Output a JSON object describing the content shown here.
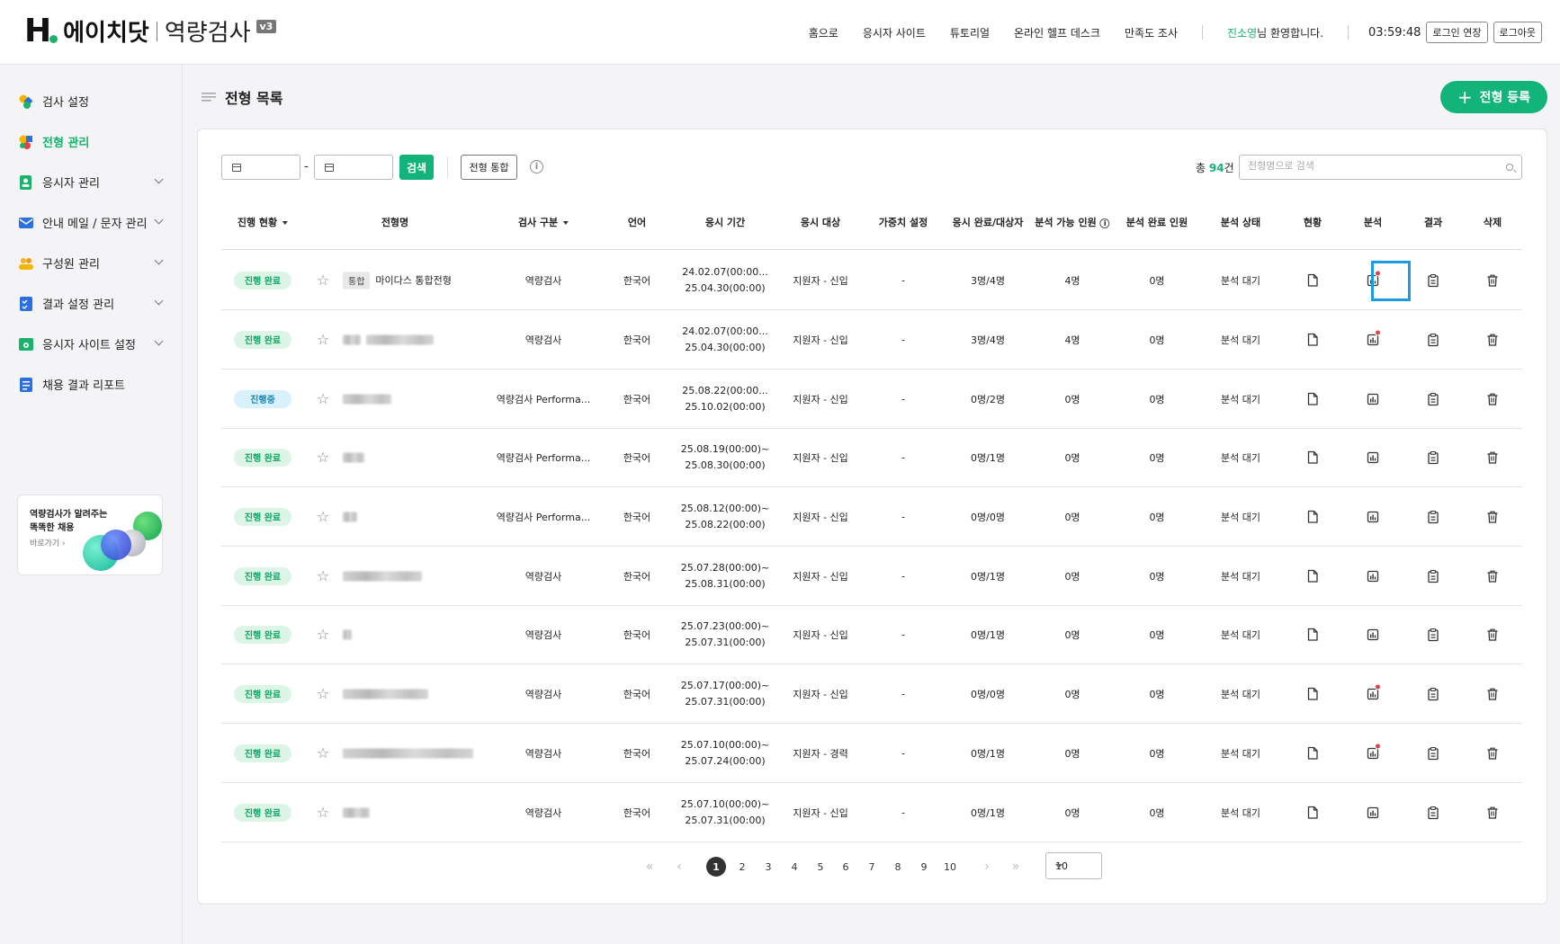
{
  "header": {
    "logo_mark": "H",
    "logo_name": "에이치닷",
    "logo_sub": "역량검사",
    "logo_version": "v3",
    "nav": [
      "홈으로",
      "응시자 사이트",
      "튜토리얼",
      "온라인 헬프 데스크",
      "만족도 조사"
    ],
    "user_name": "진소영",
    "welcome_suffix": "님 환영합니다.",
    "timer": "03:59:48",
    "extend_login": "로그인 연장",
    "logout": "로그아웃"
  },
  "sidebar": {
    "items": [
      {
        "label": "검사 설정",
        "icon": "test-settings-icon",
        "expandable": false,
        "active": false
      },
      {
        "label": "전형 관리",
        "icon": "screening-manage-icon",
        "expandable": false,
        "active": true
      },
      {
        "label": "응시자 관리",
        "icon": "applicant-manage-icon",
        "expandable": true,
        "active": false
      },
      {
        "label": "안내 메일 / 문자 관리",
        "icon": "mail-icon",
        "expandable": true,
        "active": false
      },
      {
        "label": "구성원 관리",
        "icon": "members-icon",
        "expandable": true,
        "active": false
      },
      {
        "label": "결과 설정 관리",
        "icon": "result-settings-icon",
        "expandable": true,
        "active": false
      },
      {
        "label": "응시자 사이트 설정",
        "icon": "site-settings-icon",
        "expandable": true,
        "active": false
      },
      {
        "label": "채용 결과 리포트",
        "icon": "report-icon",
        "expandable": false,
        "active": false
      }
    ],
    "banner": {
      "title": "역량검사가 알려주는 똑똑한 채용",
      "link": "바로가기"
    }
  },
  "page": {
    "title": "전형 목록",
    "register_button": "전형 등록",
    "search_button": "검색",
    "merge_button": "전형 통합",
    "total_prefix": "총 ",
    "total_count": "94",
    "total_suffix": "건",
    "search_placeholder": "전형명으로 검색",
    "date_dash": "-"
  },
  "table": {
    "columns": [
      "진행 현황",
      "전형명",
      "검사 구분",
      "언어",
      "응시 기간",
      "응시 대상",
      "가중치 설정",
      "응시 완료/대상자",
      "분석 가능 인원",
      "분석 완료 인원",
      "분석 상태",
      "현황",
      "분석",
      "결과",
      "삭제"
    ],
    "rows": [
      {
        "status": "진행 완료",
        "in_progress": false,
        "tag": "통합",
        "name": "마이다스 통합전형",
        "blurred": false,
        "type": "역량검사",
        "lang": "한국어",
        "period1": "24.02.07(00:00...",
        "period2": "25.04.30(00:00)",
        "target": "지원자 - 신입",
        "weight": "-",
        "done": "3명/4명",
        "avail": "4명",
        "analyzed": "0명",
        "astate": "분석 대기",
        "alert": true,
        "highlight": true
      },
      {
        "status": "진행 완료",
        "in_progress": false,
        "tag": "",
        "name": "",
        "blurred": true,
        "type": "역량검사",
        "lang": "한국어",
        "period1": "24.02.07(00:00...",
        "period2": "25.04.30(00:00)",
        "target": "지원자 - 신입",
        "weight": "-",
        "done": "3명/4명",
        "avail": "4명",
        "analyzed": "0명",
        "astate": "분석 대기",
        "alert": true,
        "highlight": false
      },
      {
        "status": "진행중",
        "in_progress": true,
        "tag": "",
        "name": "",
        "blurred": true,
        "type": "역량검사 Performa...",
        "lang": "한국어",
        "period1": "25.08.22(00:00...",
        "period2": "25.10.02(00:00)",
        "target": "지원자 - 신입",
        "weight": "-",
        "done": "0명/2명",
        "avail": "0명",
        "analyzed": "0명",
        "astate": "분석 대기",
        "alert": false,
        "highlight": false
      },
      {
        "status": "진행 완료",
        "in_progress": false,
        "tag": "",
        "name": "",
        "blurred": true,
        "type": "역량검사 Performa...",
        "lang": "한국어",
        "period1": "25.08.19(00:00)~",
        "period2": "25.08.30(00:00)",
        "target": "지원자 - 신입",
        "weight": "-",
        "done": "0명/1명",
        "avail": "0명",
        "analyzed": "0명",
        "astate": "분석 대기",
        "alert": false,
        "highlight": false
      },
      {
        "status": "진행 완료",
        "in_progress": false,
        "tag": "",
        "name": "",
        "blurred": true,
        "type": "역량검사 Performa...",
        "lang": "한국어",
        "period1": "25.08.12(00:00)~",
        "period2": "25.08.22(00:00)",
        "target": "지원자 - 신입",
        "weight": "-",
        "done": "0명/0명",
        "avail": "0명",
        "analyzed": "0명",
        "astate": "분석 대기",
        "alert": false,
        "highlight": false
      },
      {
        "status": "진행 완료",
        "in_progress": false,
        "tag": "",
        "name": "",
        "blurred": true,
        "type": "역량검사",
        "lang": "한국어",
        "period1": "25.07.28(00:00)~",
        "period2": "25.08.31(00:00)",
        "target": "지원자 - 신입",
        "weight": "-",
        "done": "0명/1명",
        "avail": "0명",
        "analyzed": "0명",
        "astate": "분석 대기",
        "alert": false,
        "highlight": false
      },
      {
        "status": "진행 완료",
        "in_progress": false,
        "tag": "",
        "name": "",
        "blurred": true,
        "type": "역량검사",
        "lang": "한국어",
        "period1": "25.07.23(00:00)~",
        "period2": "25.07.31(00:00)",
        "target": "지원자 - 신입",
        "weight": "-",
        "done": "0명/1명",
        "avail": "0명",
        "analyzed": "0명",
        "astate": "분석 대기",
        "alert": false,
        "highlight": false
      },
      {
        "status": "진행 완료",
        "in_progress": false,
        "tag": "",
        "name": "",
        "blurred": true,
        "type": "역량검사",
        "lang": "한국어",
        "period1": "25.07.17(00:00)~",
        "period2": "25.07.31(00:00)",
        "target": "지원자 - 신입",
        "weight": "-",
        "done": "0명/0명",
        "avail": "0명",
        "analyzed": "0명",
        "astate": "분석 대기",
        "alert": true,
        "highlight": false
      },
      {
        "status": "진행 완료",
        "in_progress": false,
        "tag": "",
        "name": "",
        "blurred": true,
        "type": "역량검사",
        "lang": "한국어",
        "period1": "25.07.10(00:00)~",
        "period2": "25.07.24(00:00)",
        "target": "지원자 - 경력",
        "weight": "-",
        "done": "0명/1명",
        "avail": "0명",
        "analyzed": "0명",
        "astate": "분석 대기",
        "alert": true,
        "highlight": false
      },
      {
        "status": "진행 완료",
        "in_progress": false,
        "tag": "",
        "name": "",
        "blurred": true,
        "type": "역량검사",
        "lang": "한국어",
        "period1": "25.07.10(00:00)~",
        "period2": "25.07.31(00:00)",
        "target": "지원자 - 신입",
        "weight": "-",
        "done": "0명/1명",
        "avail": "0명",
        "analyzed": "0명",
        "astate": "분석 대기",
        "alert": false,
        "highlight": false
      }
    ]
  },
  "pagination": {
    "first": "«",
    "prev": "‹",
    "next": "›",
    "last": "»",
    "pages": [
      "1",
      "2",
      "3",
      "4",
      "5",
      "6",
      "7",
      "8",
      "9",
      "10"
    ],
    "current": "1",
    "page_size": "10"
  },
  "colors": {
    "accent": "#12b47a",
    "highlight": "#1d9be0",
    "alert": "#e5404a",
    "in_progress": "#1587b5"
  }
}
